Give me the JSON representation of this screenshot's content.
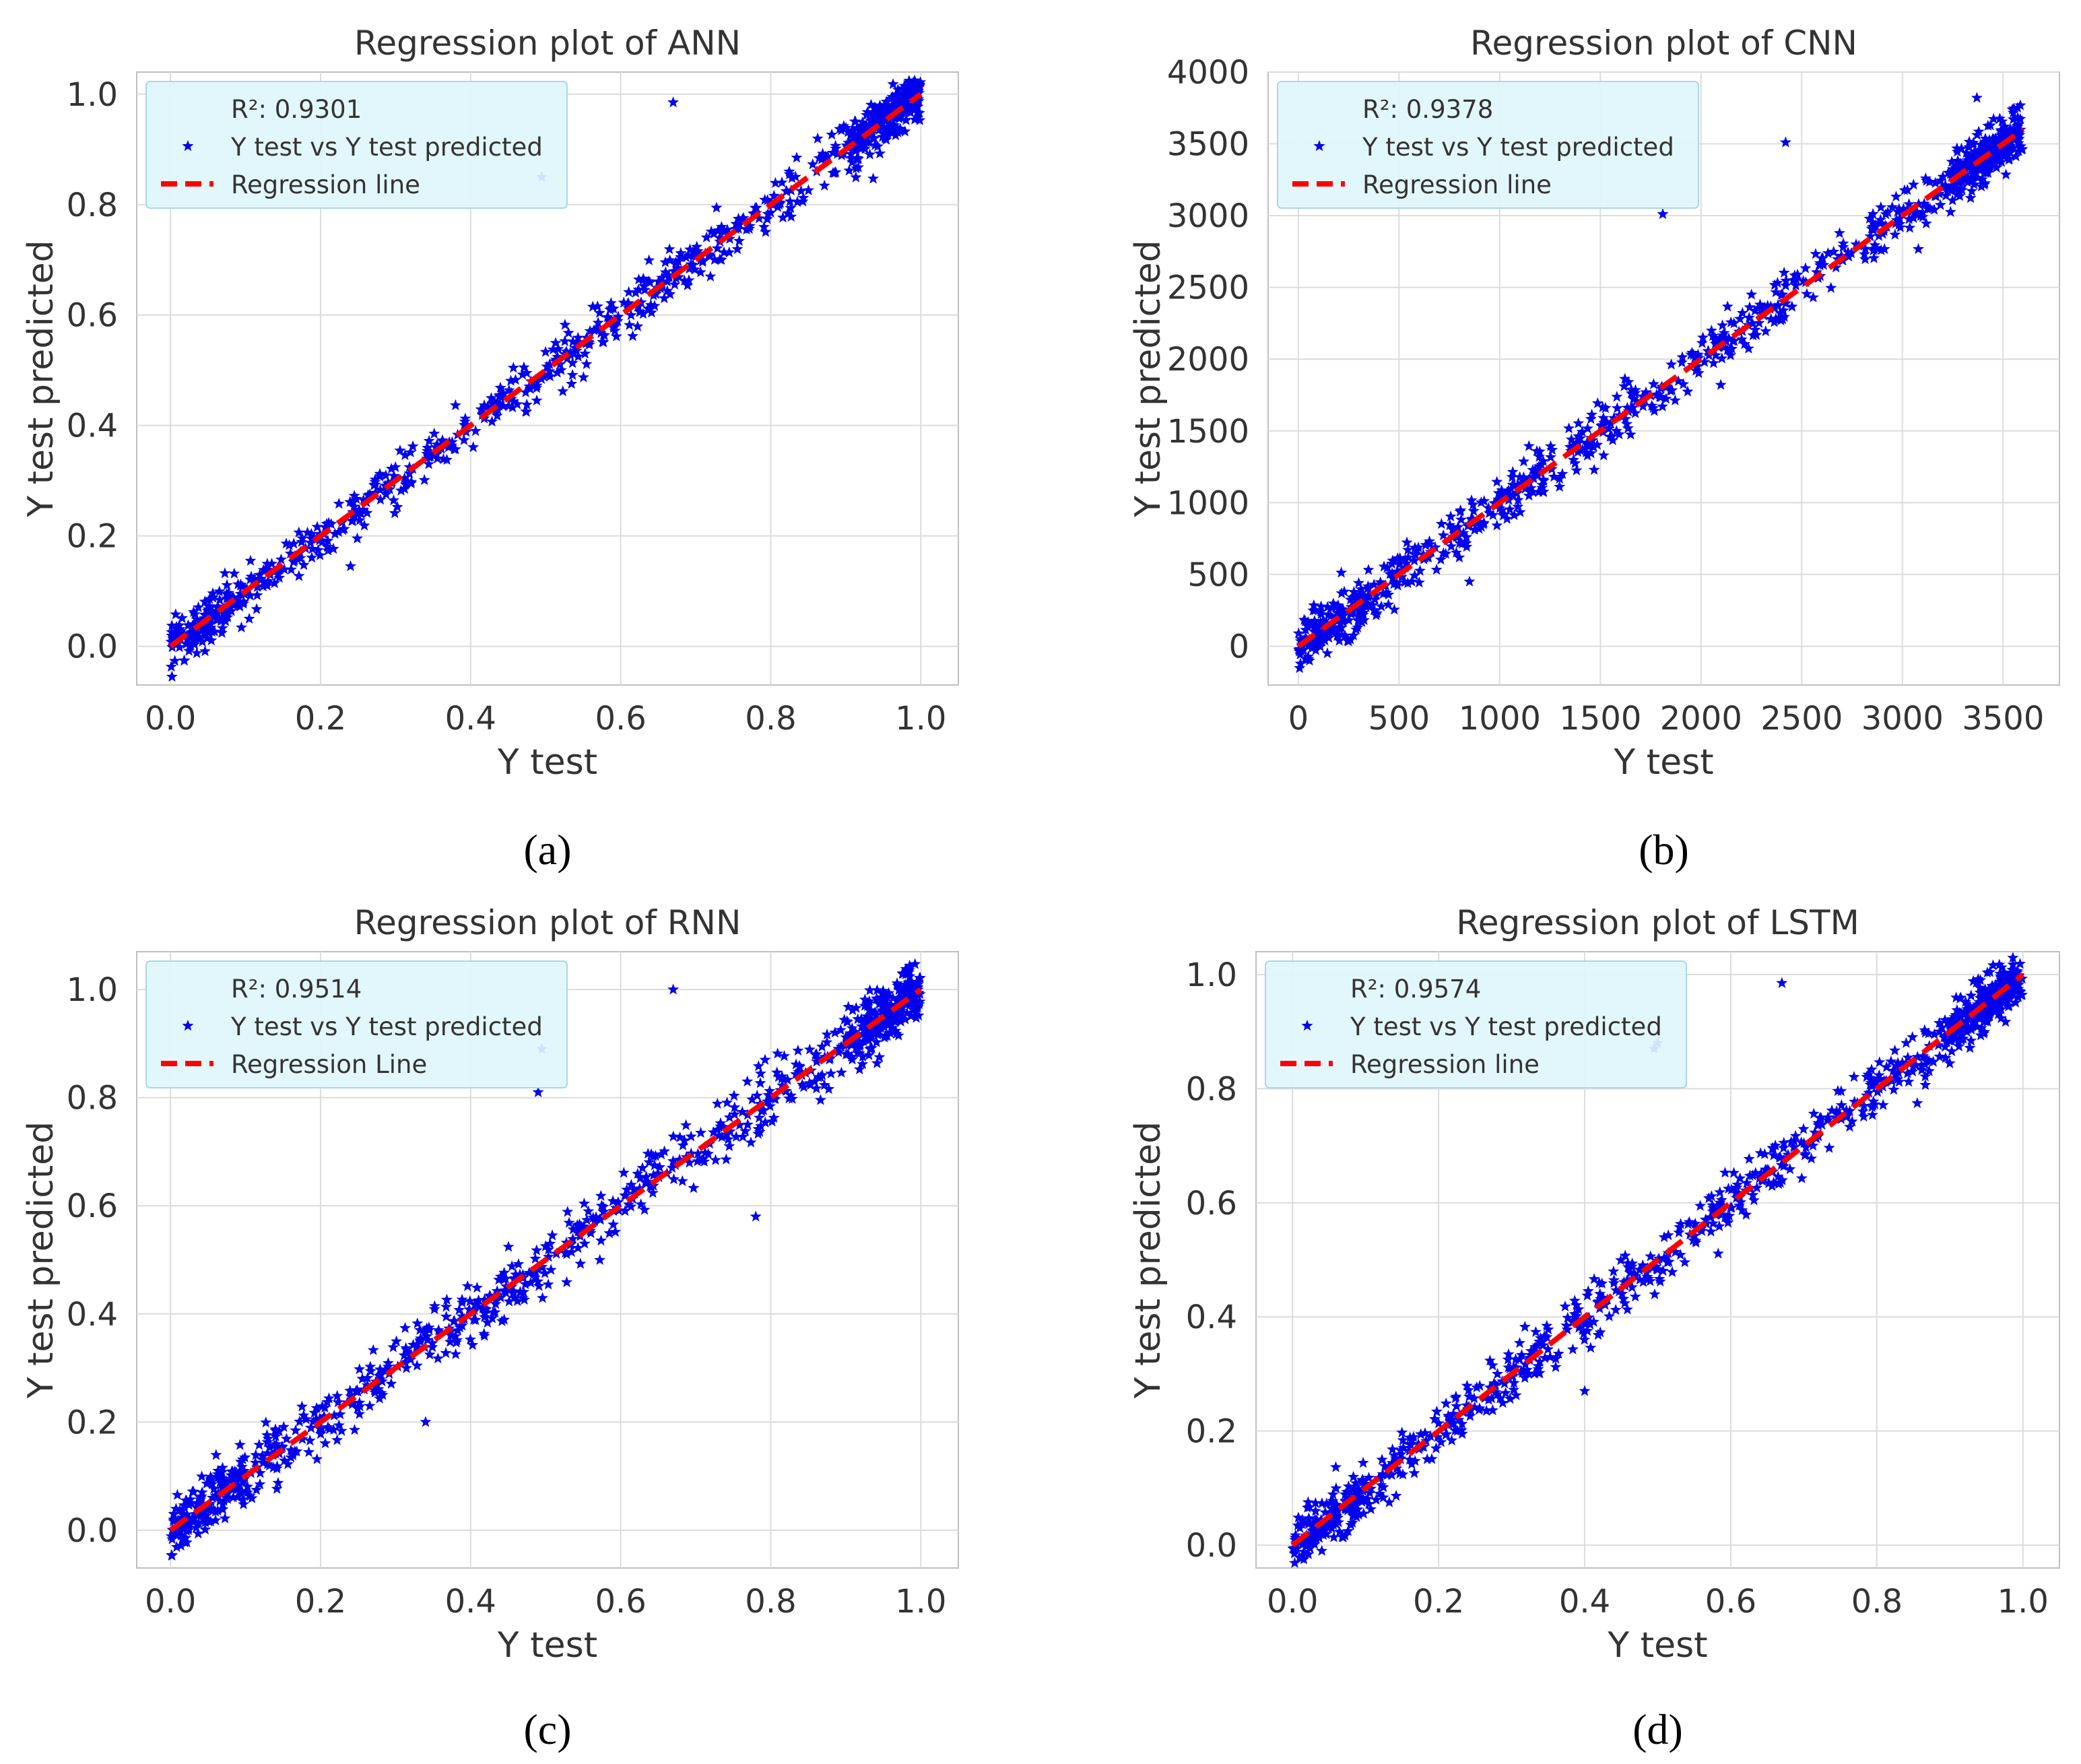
{
  "chart_data": [
    {
      "type": "scatter",
      "panel_label": "(a)",
      "title": "Regression plot of ANN",
      "xlabel": "Y test",
      "ylabel": "Y test predicted",
      "xlim": [
        -0.045,
        1.05
      ],
      "ylim": [
        -0.07,
        1.04
      ],
      "xticks": [
        0.0,
        0.2,
        0.4,
        0.6,
        0.8,
        1.0
      ],
      "xtick_labels": [
        "0.0",
        "0.2",
        "0.4",
        "0.6",
        "0.8",
        "1.0"
      ],
      "yticks": [
        0.0,
        0.2,
        0.4,
        0.6,
        0.8,
        1.0
      ],
      "ytick_labels": [
        "0.0",
        "0.2",
        "0.4",
        "0.6",
        "0.8",
        "1.0"
      ],
      "grid": true,
      "legend_position": "top-left",
      "r2_text": "R²: 0.9301",
      "series": [
        {
          "name": "Y test vs Y test predicted",
          "kind": "scatter",
          "marker": "star",
          "color": "#0000ee",
          "n_points": 900,
          "slope": 1.0,
          "intercept": 0.0,
          "noise_sd": 0.022
        },
        {
          "name": "Regression line",
          "kind": "line",
          "style": "dashed",
          "color": "#ff0000",
          "x": [
            0.0,
            1.0
          ],
          "y": [
            0.0,
            1.0
          ]
        }
      ],
      "outliers": [
        [
          0.67,
          0.985
        ],
        [
          0.495,
          0.85
        ],
        [
          0.24,
          0.145
        ]
      ]
    },
    {
      "type": "scatter",
      "panel_label": "(b)",
      "title": "Regression plot of CNN",
      "xlabel": "Y test",
      "ylabel": "Y test predicted",
      "xlim": [
        -150,
        3780
      ],
      "ylim": [
        -270,
        4000
      ],
      "xticks": [
        0,
        500,
        1000,
        1500,
        2000,
        2500,
        3000,
        3500
      ],
      "xtick_labels": [
        "0",
        "500",
        "1000",
        "1500",
        "2000",
        "2500",
        "3000",
        "3500"
      ],
      "yticks": [
        0,
        500,
        1000,
        1500,
        2000,
        2500,
        3000,
        3500,
        4000
      ],
      "ytick_labels": [
        "0",
        "500",
        "1000",
        "1500",
        "2000",
        "2500",
        "3000",
        "3500",
        "4000"
      ],
      "grid": true,
      "legend_position": "top-left",
      "r2_text": "R²: 0.9378",
      "series": [
        {
          "name": "Y test vs Y test predicted",
          "kind": "scatter",
          "marker": "star",
          "color": "#0000ee",
          "n_points": 900,
          "slope": 1.0,
          "intercept": 0.0,
          "noise_sd": 85
        },
        {
          "name": "Regression line",
          "kind": "line",
          "style": "dashed",
          "color": "#ff0000",
          "x": [
            0,
            3600
          ],
          "y": [
            0,
            3600
          ]
        }
      ],
      "outliers": [
        [
          2420,
          3510
        ],
        [
          1810,
          3010
        ],
        [
          3370,
          3820
        ],
        [
          850,
          450
        ]
      ]
    },
    {
      "type": "scatter",
      "panel_label": "(c)",
      "title": "Regression plot of RNN",
      "xlabel": "Y test",
      "ylabel": "Y test predicted",
      "xlim": [
        -0.045,
        1.05
      ],
      "ylim": [
        -0.07,
        1.07
      ],
      "xticks": [
        0.0,
        0.2,
        0.4,
        0.6,
        0.8,
        1.0
      ],
      "xtick_labels": [
        "0.0",
        "0.2",
        "0.4",
        "0.6",
        "0.8",
        "1.0"
      ],
      "yticks": [
        0.0,
        0.2,
        0.4,
        0.6,
        0.8,
        1.0
      ],
      "ytick_labels": [
        "0.0",
        "0.2",
        "0.4",
        "0.6",
        "0.8",
        "1.0"
      ],
      "grid": true,
      "legend_position": "top-left",
      "r2_text": "R²: 0.9514",
      "series": [
        {
          "name": "Y test vs Y test predicted",
          "kind": "scatter",
          "marker": "star",
          "color": "#0000ee",
          "n_points": 900,
          "slope": 1.0,
          "intercept": 0.0,
          "noise_sd": 0.026
        },
        {
          "name": "Regression Line",
          "kind": "line",
          "style": "dashed",
          "color": "#ff0000",
          "x": [
            0.0,
            1.0
          ],
          "y": [
            0.0,
            1.0
          ]
        }
      ],
      "outliers": [
        [
          0.67,
          1.0
        ],
        [
          0.495,
          0.89
        ],
        [
          0.49,
          0.81
        ],
        [
          0.78,
          0.58
        ],
        [
          0.34,
          0.2
        ]
      ]
    },
    {
      "type": "scatter",
      "panel_label": "(d)",
      "title": "Regression plot of LSTM",
      "xlabel": "Y test",
      "ylabel": "Y test predicted",
      "xlim": [
        -0.05,
        1.05
      ],
      "ylim": [
        -0.04,
        1.04
      ],
      "xticks": [
        0.0,
        0.2,
        0.4,
        0.6,
        0.8,
        1.0
      ],
      "xtick_labels": [
        "0.0",
        "0.2",
        "0.4",
        "0.6",
        "0.8",
        "1.0"
      ],
      "yticks": [
        0.0,
        0.2,
        0.4,
        0.6,
        0.8,
        1.0
      ],
      "ytick_labels": [
        "0.0",
        "0.2",
        "0.4",
        "0.6",
        "0.8",
        "1.0"
      ],
      "grid": true,
      "legend_position": "top-left",
      "r2_text": "R²: 0.9574",
      "series": [
        {
          "name": "Y test vs Y test predicted",
          "kind": "scatter",
          "marker": "star",
          "color": "#0000ee",
          "n_points": 900,
          "slope": 1.0,
          "intercept": 0.0,
          "noise_sd": 0.022
        },
        {
          "name": "Regression line",
          "kind": "line",
          "style": "dashed",
          "color": "#ff0000",
          "x": [
            0.0,
            1.0
          ],
          "y": [
            0.0,
            1.0
          ]
        }
      ],
      "outliers": [
        [
          0.67,
          0.985
        ],
        [
          0.495,
          0.87
        ],
        [
          0.5,
          0.88
        ],
        [
          0.4,
          0.27
        ]
      ]
    }
  ],
  "colors": {
    "grid": "#dcdcdc",
    "axis": "#bfbfbf",
    "text": "#333333",
    "legend_bg": "#dff6fb",
    "legend_border": "#a8d8e6"
  }
}
